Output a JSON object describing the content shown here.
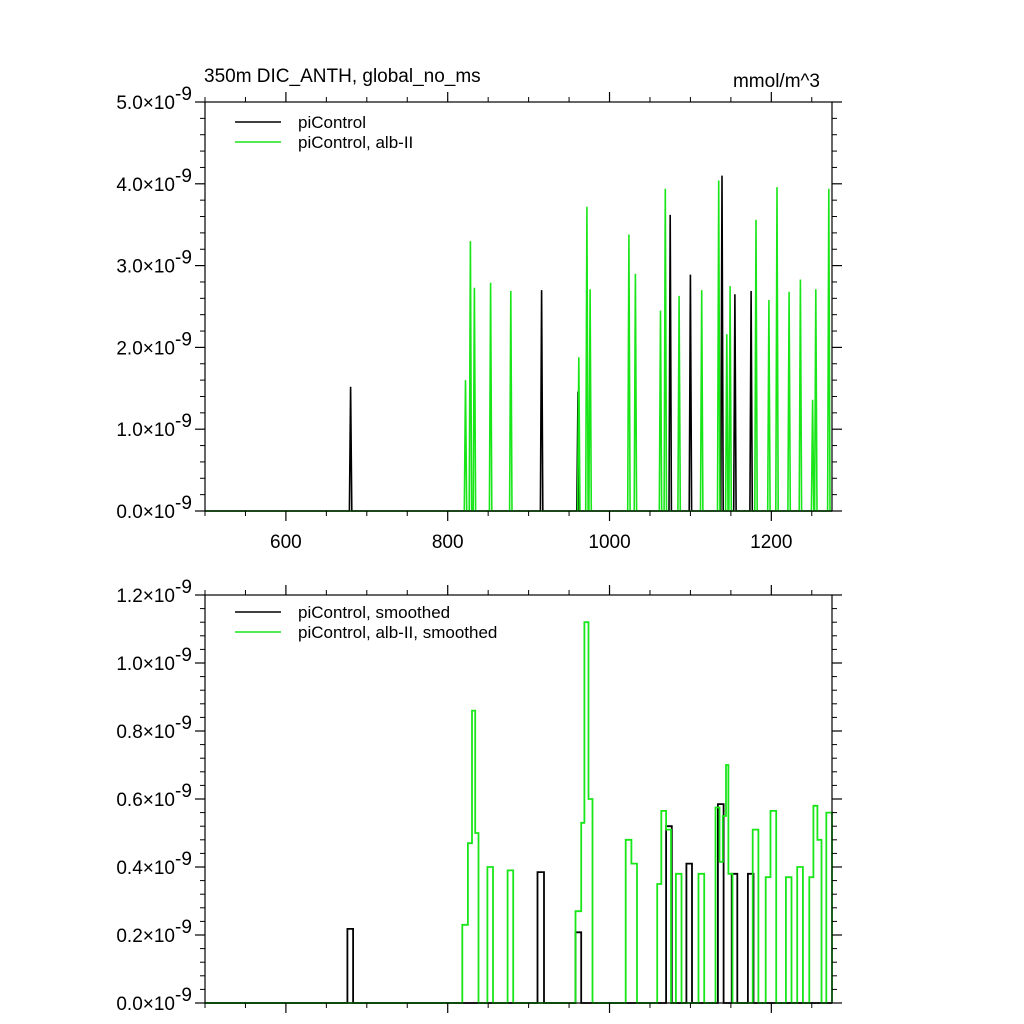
{
  "colors": {
    "control": "#000000",
    "alb": "#19e619",
    "axis": "#000000",
    "background": "#ffffff"
  },
  "chart_data": [
    {
      "type": "line",
      "step": true,
      "title": "350m DIC_ANTH, global_no_ms",
      "units": "mmol/m^3",
      "xlim": [
        500,
        1275
      ],
      "ylim": [
        0,
        5e-09
      ],
      "x_ticks": [
        600,
        800,
        1000,
        1200
      ],
      "x_tick_labels": [
        "600",
        "800",
        "1000",
        "1200"
      ],
      "y_ticks": [
        0,
        1e-09,
        2e-09,
        3e-09,
        4e-09,
        5e-09
      ],
      "y_tick_labels": [
        {
          "mant": "0.0",
          "exp": "-9"
        },
        {
          "mant": "1.0",
          "exp": "-9"
        },
        {
          "mant": "2.0",
          "exp": "-9"
        },
        {
          "mant": "3.0",
          "exp": "-9"
        },
        {
          "mant": "4.0",
          "exp": "-9"
        },
        {
          "mant": "5.0",
          "exp": "-9"
        }
      ],
      "legend": {
        "position": "top-left",
        "entries": [
          "piControl",
          "piControl, alb-II"
        ]
      },
      "series": [
        {
          "name": "piControl",
          "color_key": "control",
          "spikes": [
            [
              680,
              1.52e-09
            ],
            [
              916,
              2.7e-09
            ],
            [
              961,
              1.46e-09
            ],
            [
              1075,
              3.62e-09
            ],
            [
              1100,
              2.89e-09
            ],
            [
              1139,
              4.1e-09
            ],
            [
              1155,
              2.65e-09
            ],
            [
              1175,
              2.69e-09
            ]
          ]
        },
        {
          "name": "piControl, alb-II",
          "color_key": "alb",
          "spikes": [
            [
              822,
              1.6e-09
            ],
            [
              828,
              3.3e-09
            ],
            [
              833,
              2.73e-09
            ],
            [
              853,
              2.79e-09
            ],
            [
              878,
              2.69e-09
            ],
            [
              962,
              1.88e-09
            ],
            [
              972,
              3.72e-09
            ],
            [
              976,
              2.71e-09
            ],
            [
              1024,
              3.38e-09
            ],
            [
              1032,
              2.9e-09
            ],
            [
              1063,
              2.45e-09
            ],
            [
              1069,
              3.94e-09
            ],
            [
              1086,
              2.63e-09
            ],
            [
              1114,
              2.7e-09
            ],
            [
              1135,
              4.04e-09
            ],
            [
              1145,
              2.16e-09
            ],
            [
              1149,
              2.75e-09
            ],
            [
              1181,
              3.56e-09
            ],
            [
              1197,
              2.58e-09
            ],
            [
              1207,
              3.96e-09
            ],
            [
              1222,
              2.68e-09
            ],
            [
              1236,
              2.83e-09
            ],
            [
              1251,
              1.36e-09
            ],
            [
              1255,
              2.71e-09
            ],
            [
              1271,
              3.94e-09
            ]
          ]
        }
      ]
    },
    {
      "type": "line",
      "step": true,
      "xlim": [
        500,
        1275
      ],
      "ylim": [
        0,
        1.2e-09
      ],
      "x_ticks": [
        600,
        800,
        1000,
        1200
      ],
      "y_ticks": [
        0,
        2e-10,
        4e-10,
        6e-10,
        8e-10,
        1e-09,
        1.2e-09
      ],
      "y_tick_labels": [
        {
          "mant": "0.0",
          "exp": "-9"
        },
        {
          "mant": "0.2",
          "exp": "-9"
        },
        {
          "mant": "0.4",
          "exp": "-9"
        },
        {
          "mant": "0.6",
          "exp": "-9"
        },
        {
          "mant": "0.8",
          "exp": "-9"
        },
        {
          "mant": "1.0",
          "exp": "-9"
        },
        {
          "mant": "1.2",
          "exp": "-9"
        }
      ],
      "legend": {
        "position": "top-left",
        "entries": [
          "piControl, smoothed",
          "piControl, alb-II, smoothed"
        ]
      },
      "series": [
        {
          "name": "piControl, smoothed",
          "color_key": "control",
          "steps": [
            [
              500,
              0
            ],
            [
              676,
              2.18e-10
            ],
            [
              683,
              0
            ],
            [
              911,
              3.85e-10
            ],
            [
              919,
              0
            ],
            [
              958,
              2.08e-10
            ],
            [
              965,
              0
            ],
            [
              1070,
              5.2e-10
            ],
            [
              1077,
              0
            ],
            [
              1095,
              4.1e-10
            ],
            [
              1102,
              0
            ],
            [
              1134,
              5.85e-10
            ],
            [
              1141,
              0
            ],
            [
              1151,
              3.8e-10
            ],
            [
              1158,
              0
            ],
            [
              1171,
              3.8e-10
            ],
            [
              1178,
              0
            ],
            [
              1275,
              0
            ]
          ]
        },
        {
          "name": "piControl, alb-II, smoothed",
          "color_key": "alb",
          "steps": [
            [
              500,
              0
            ],
            [
              818,
              2.3e-10
            ],
            [
              825,
              4.7e-10
            ],
            [
              830,
              8.6e-10
            ],
            [
              834,
              5e-10
            ],
            [
              838,
              0
            ],
            [
              849,
              4e-10
            ],
            [
              856,
              0
            ],
            [
              874,
              3.9e-10
            ],
            [
              881,
              0
            ],
            [
              958,
              2.7e-10
            ],
            [
              965,
              5.3e-10
            ],
            [
              969,
              1.12e-09
            ],
            [
              974,
              6e-10
            ],
            [
              979,
              0
            ],
            [
              1020,
              4.8e-10
            ],
            [
              1027,
              4.1e-10
            ],
            [
              1034,
              0
            ],
            [
              1059,
              3.5e-10
            ],
            [
              1064,
              5.65e-10
            ],
            [
              1070,
              5.1e-10
            ],
            [
              1076,
              0
            ],
            [
              1082,
              3.8e-10
            ],
            [
              1089,
              0
            ],
            [
              1110,
              3.8e-10
            ],
            [
              1117,
              0
            ],
            [
              1131,
              5.75e-10
            ],
            [
              1136,
              4.15e-10
            ],
            [
              1140,
              5.5e-10
            ],
            [
              1144,
              7e-10
            ],
            [
              1147,
              3.8e-10
            ],
            [
              1152,
              0
            ],
            [
              1177,
              5.1e-10
            ],
            [
              1184,
              0
            ],
            [
              1193,
              3.7e-10
            ],
            [
              1199,
              5.65e-10
            ],
            [
              1206,
              0
            ],
            [
              1218,
              3.7e-10
            ],
            [
              1225,
              0
            ],
            [
              1232,
              4e-10
            ],
            [
              1239,
              0
            ],
            [
              1247,
              3.7e-10
            ],
            [
              1252,
              5.8e-10
            ],
            [
              1257,
              4.8e-10
            ],
            [
              1262,
              0
            ],
            [
              1268,
              5.6e-10
            ],
            [
              1275,
              0
            ]
          ]
        }
      ]
    }
  ]
}
